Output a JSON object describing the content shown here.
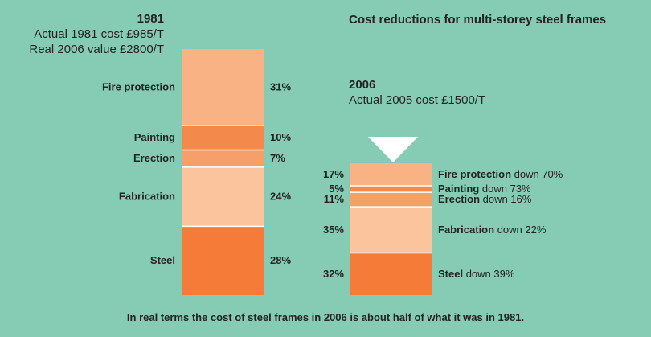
{
  "header_1981": {
    "year": "1981",
    "actual_cost": "Actual 1981 cost £985/T",
    "real_value": "Real 2006 value £2800/T"
  },
  "header_2006": {
    "year": "2006",
    "actual_cost": "Actual 2005 cost £1500/T"
  },
  "title": "Cost reductions for multi-storey steel frames",
  "footer": "In real terms the cost of steel frames in 2006 is about half of what it was in 1981.",
  "chart_data": {
    "type": "stacked-bar",
    "title": "Cost reductions for multi-storey steel frames",
    "categories": [
      "Fire protection",
      "Painting",
      "Erection",
      "Fabrication",
      "Steel"
    ],
    "colors": {
      "Fire protection": "#f8b283",
      "Painting": "#f4894c",
      "Erection": "#f69f69",
      "Fabrication": "#fcc49c",
      "Steel": "#f47c38",
      "divider": "#ffffff"
    },
    "bars": [
      {
        "name": "1981",
        "total": 2800,
        "unit": "£/T (real 2006 value)",
        "segments": [
          {
            "category": "Fire protection",
            "value": 31,
            "label": "31%"
          },
          {
            "category": "Painting",
            "value": 10,
            "label": "10%"
          },
          {
            "category": "Erection",
            "value": 7,
            "label": "7%"
          },
          {
            "category": "Fabrication",
            "value": 24,
            "label": "24%"
          },
          {
            "category": "Steel",
            "value": 28,
            "label": "28%"
          }
        ]
      },
      {
        "name": "2006",
        "total": 1500,
        "unit": "£/T",
        "segments": [
          {
            "category": "Fire protection",
            "value": 17,
            "label": "17%",
            "change": "down 70%"
          },
          {
            "category": "Painting",
            "value": 5,
            "label": "5%",
            "change": "down 73%"
          },
          {
            "category": "Erection",
            "value": 11,
            "label": "11%",
            "change": "down 16%"
          },
          {
            "category": "Fabrication",
            "value": 35,
            "label": "35%",
            "change": "down 22%"
          },
          {
            "category": "Steel",
            "value": 32,
            "label": "32%",
            "change": "down 39%"
          }
        ]
      }
    ]
  }
}
